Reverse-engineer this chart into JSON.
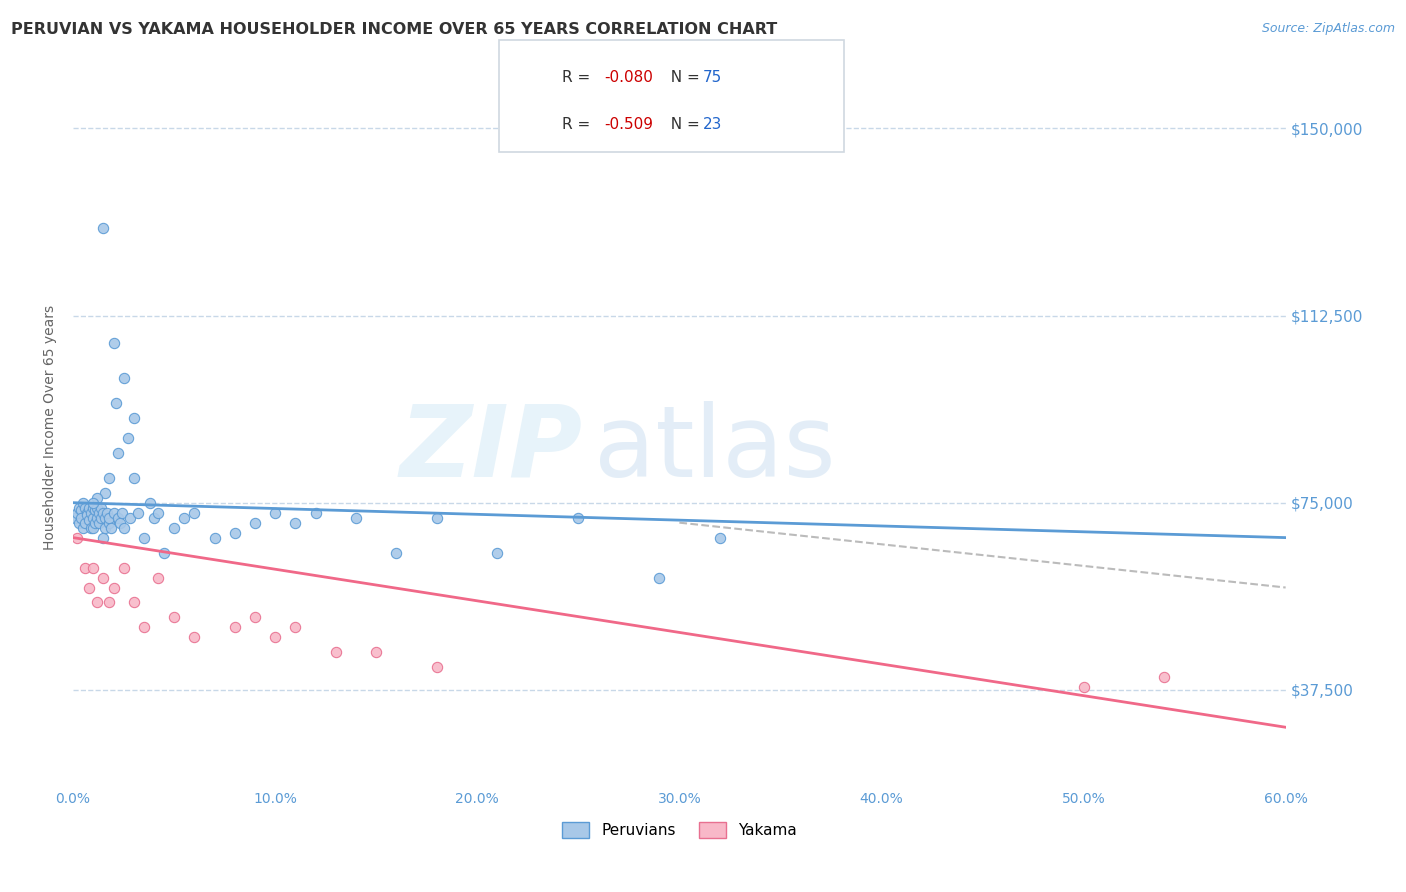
{
  "title": "PERUVIAN VS YAKAMA HOUSEHOLDER INCOME OVER 65 YEARS CORRELATION CHART",
  "source_text": "Source: ZipAtlas.com",
  "ylabel": "Householder Income Over 65 years",
  "xlim": [
    0.0,
    0.6
  ],
  "ylim": [
    18000,
    162000
  ],
  "yticks": [
    37500,
    75000,
    112500,
    150000
  ],
  "ytick_labels": [
    "$37,500",
    "$75,000",
    "$112,500",
    "$150,000"
  ],
  "xticks": [
    0.0,
    0.1,
    0.2,
    0.3,
    0.4,
    0.5,
    0.6
  ],
  "xtick_labels": [
    "0.0%",
    "10.0%",
    "20.0%",
    "30.0%",
    "40.0%",
    "50.0%",
    "60.0%"
  ],
  "grid_color": "#c8d8e8",
  "background_color": "#ffffff",
  "axis_color": "#5b9bd5",
  "peruvian_color": "#a8c8e8",
  "peruvian_edge_color": "#5b9bd5",
  "yakama_color": "#f8b8c8",
  "yakama_edge_color": "#e87090",
  "peruvian_line_color": "#5b9bd5",
  "yakama_line_color": "#f06888",
  "dashed_line_color": "#bbbbbb",
  "peruvian_R": -0.08,
  "peruvian_N": 75,
  "yakama_R": -0.509,
  "yakama_N": 23,
  "legend_R_color": "#cc0000",
  "legend_N_color": "#2266cc",
  "watermark_zip_color": "#d8eaf8",
  "watermark_atlas_color": "#c8dff0",
  "peruvian_x": [
    0.001,
    0.002,
    0.003,
    0.003,
    0.004,
    0.004,
    0.005,
    0.005,
    0.006,
    0.006,
    0.007,
    0.007,
    0.008,
    0.008,
    0.009,
    0.009,
    0.01,
    0.01,
    0.01,
    0.011,
    0.011,
    0.012,
    0.012,
    0.013,
    0.013,
    0.014,
    0.014,
    0.015,
    0.015,
    0.016,
    0.016,
    0.017,
    0.018,
    0.018,
    0.019,
    0.02,
    0.021,
    0.022,
    0.023,
    0.024,
    0.025,
    0.027,
    0.028,
    0.03,
    0.032,
    0.035,
    0.038,
    0.04,
    0.042,
    0.045,
    0.05,
    0.055,
    0.06,
    0.07,
    0.08,
    0.09,
    0.1,
    0.11,
    0.12,
    0.14,
    0.16,
    0.18,
    0.21,
    0.25,
    0.29,
    0.32,
    0.015,
    0.02,
    0.025,
    0.03,
    0.022,
    0.018,
    0.016,
    0.012,
    0.01
  ],
  "peruvian_y": [
    72000,
    73000,
    74000,
    71000,
    73500,
    72000,
    75000,
    70000,
    74000,
    71000,
    73000,
    72500,
    74000,
    71500,
    73000,
    70000,
    74000,
    72000,
    70000,
    73500,
    71000,
    74000,
    72000,
    73000,
    71000,
    74000,
    72000,
    68000,
    73000,
    72000,
    70000,
    73000,
    71000,
    72000,
    70000,
    73000,
    95000,
    72000,
    71000,
    73000,
    70000,
    88000,
    72000,
    80000,
    73000,
    68000,
    75000,
    72000,
    73000,
    65000,
    70000,
    72000,
    73000,
    68000,
    69000,
    71000,
    73000,
    71000,
    73000,
    72000,
    65000,
    72000,
    65000,
    72000,
    60000,
    68000,
    130000,
    107000,
    100000,
    92000,
    85000,
    80000,
    77000,
    76000,
    75000
  ],
  "yakama_x": [
    0.002,
    0.006,
    0.008,
    0.01,
    0.012,
    0.015,
    0.018,
    0.02,
    0.025,
    0.03,
    0.035,
    0.042,
    0.05,
    0.06,
    0.08,
    0.09,
    0.1,
    0.11,
    0.13,
    0.15,
    0.18,
    0.5,
    0.54
  ],
  "yakama_y": [
    68000,
    62000,
    58000,
    62000,
    55000,
    60000,
    55000,
    58000,
    62000,
    55000,
    50000,
    60000,
    52000,
    48000,
    50000,
    52000,
    48000,
    50000,
    45000,
    45000,
    42000,
    38000,
    40000
  ],
  "peruvian_trend_x0": 0.0,
  "peruvian_trend_x1": 0.6,
  "peruvian_trend_y0": 75000,
  "peruvian_trend_y1": 68000,
  "yakama_trend_x0": 0.0,
  "yakama_trend_x1": 0.6,
  "yakama_trend_y0": 68000,
  "yakama_trend_y1": 30000,
  "dashed_trend_x0": 0.3,
  "dashed_trend_x1": 0.6,
  "dashed_trend_y0": 71000,
  "dashed_trend_y1": 58000
}
